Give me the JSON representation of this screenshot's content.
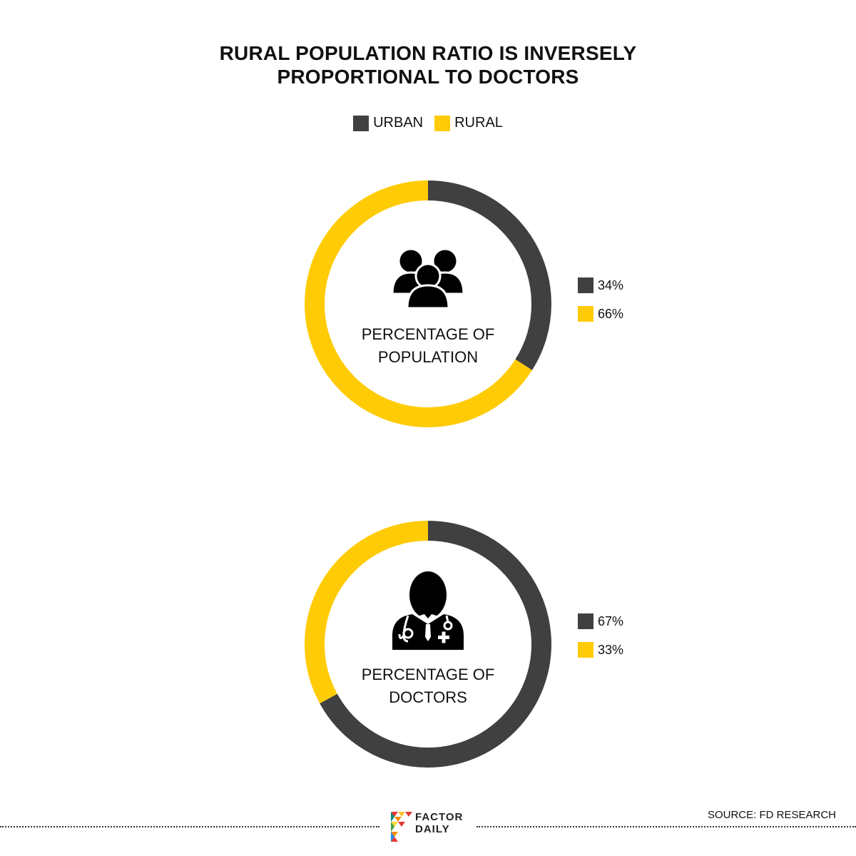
{
  "title": {
    "line1": "RURAL POPULATION RATIO IS INVERSELY",
    "line2": "PROPORTIONAL TO DOCTORS"
  },
  "legend": [
    {
      "label": "URBAN",
      "color": "#404041"
    },
    {
      "label": "RURAL",
      "color": "#FFCB05"
    }
  ],
  "colors": {
    "urban": "#404041",
    "rural": "#FFCB05"
  },
  "chart_data": [
    {
      "type": "pie",
      "categories": [
        "URBAN",
        "RURAL"
      ],
      "values": [
        34,
        66
      ],
      "value_labels": [
        "34%",
        "66%"
      ],
      "center_label_line1": "PERCENTAGE OF",
      "center_label_line2": "POPULATION",
      "icon": "people-group-icon",
      "legend_placement": "right"
    },
    {
      "type": "pie",
      "categories": [
        "URBAN",
        "RURAL"
      ],
      "values": [
        67,
        33
      ],
      "value_labels": [
        "67%",
        "33%"
      ],
      "center_label_line1": "PERCENTAGE OF",
      "center_label_line2": "DOCTORS",
      "icon": "doctor-icon",
      "legend_placement": "right"
    }
  ],
  "footer": {
    "source": "SOURCE: FD RESEARCH",
    "logo_line1": "FACTOR",
    "logo_line2": "DAILY"
  }
}
